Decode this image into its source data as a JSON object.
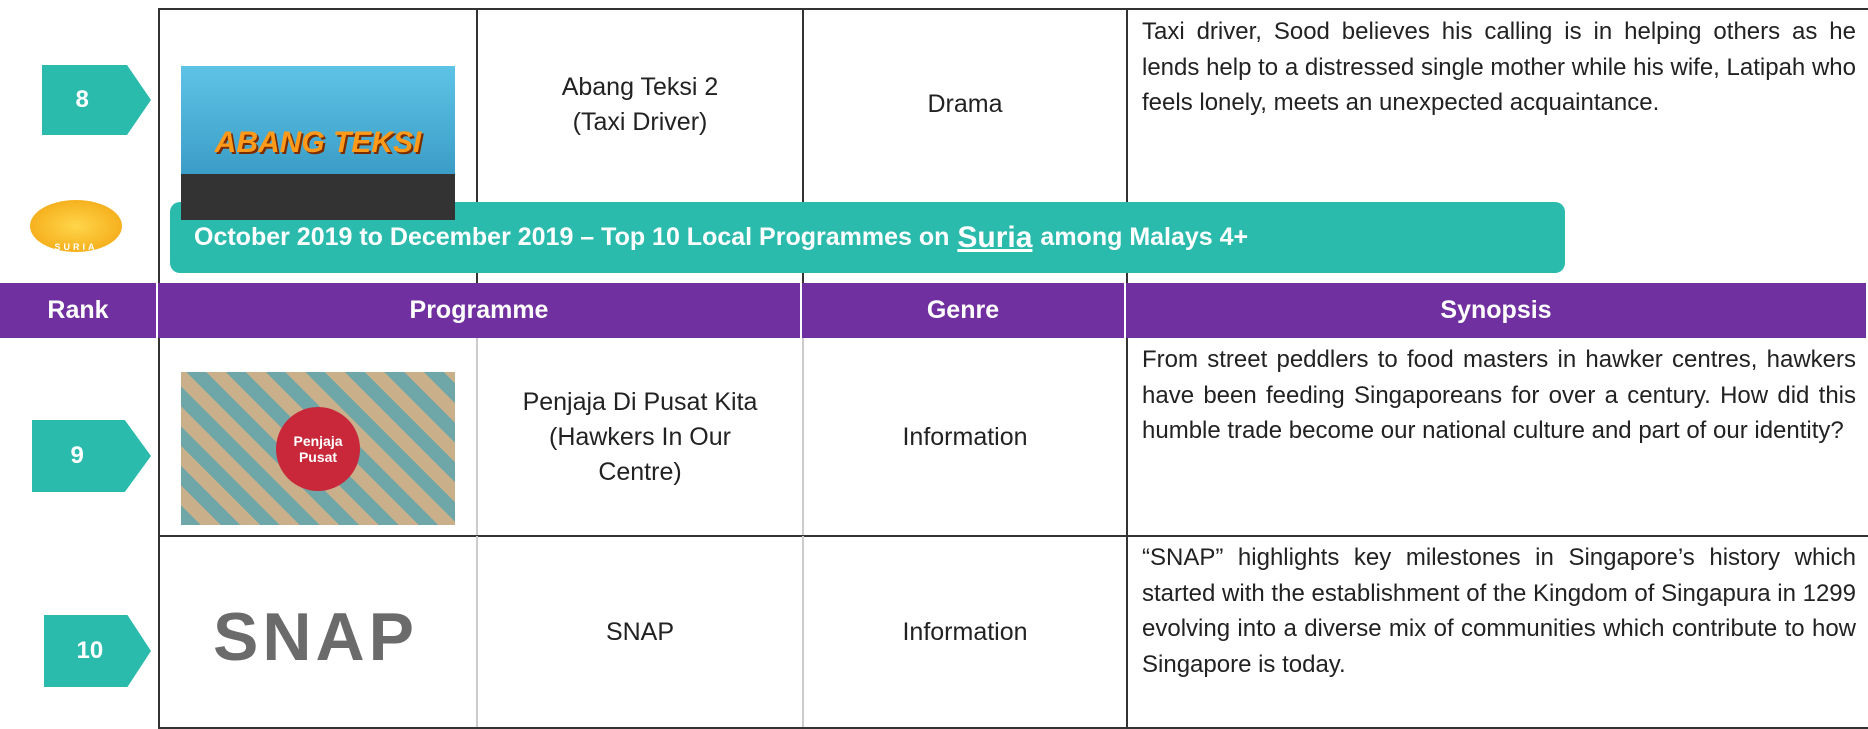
{
  "banner": {
    "prefix": "October 2019 to December 2019 – Top 10 Local Programmes on",
    "channel": "Suria",
    "suffix": "among Malays 4+"
  },
  "logo_text": "SURIA",
  "header": [
    "Rank",
    "Programme",
    "Genre",
    "Synopsis"
  ],
  "rows": [
    {
      "rank": "8",
      "image_text": "ABANG TEKSI",
      "programme": [
        "Abang Teksi 2",
        "(Taxi Driver)"
      ],
      "genre": "Drama",
      "synopsis": "Taxi driver, Sood believes his calling is in helping others as he lends help to a distressed single mother while his wife, Latipah who feels lonely, meets an unexpected acquaintance."
    },
    {
      "rank": "9",
      "image_text": "Penjaja Pusat",
      "programme": [
        "Penjaja Di Pusat Kita",
        "(Hawkers In Our",
        "Centre)"
      ],
      "genre": "Information",
      "synopsis": "From street peddlers to food masters in hawker centres, hawkers have been feeding Singaporeans for over a century. How did this humble trade become our national culture and part of our identity?"
    },
    {
      "rank": "10",
      "image_text": "SNAP",
      "programme": [
        "SNAP"
      ],
      "genre": "Information",
      "synopsis": "“SNAP” highlights key milestones in Singapore’s history which started with the establishment of the Kingdom of Singapura in 1299 evolving into a diverse mix of communities which contribute to how Singapore is today."
    }
  ]
}
